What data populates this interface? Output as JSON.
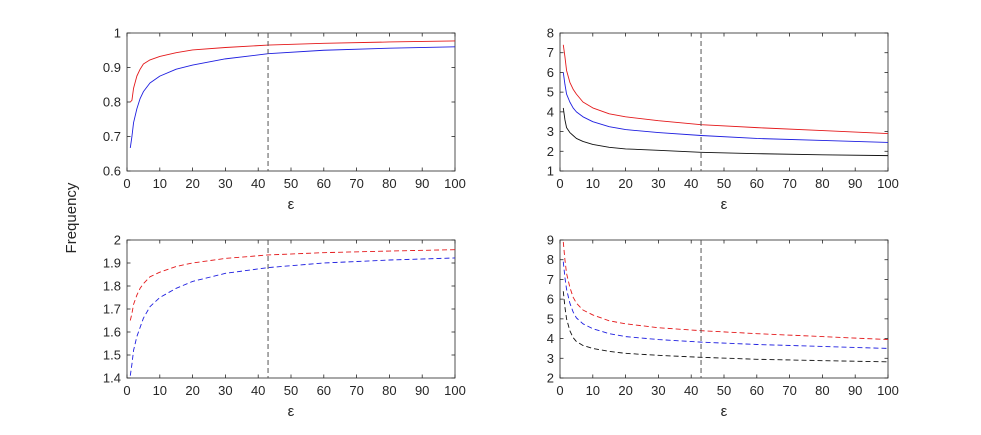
{
  "figure": {
    "ylabel": "Frequency",
    "vline_x": 43
  },
  "chart_data": [
    {
      "type": "line",
      "position": "top-left",
      "title": "",
      "xlabel": "ε",
      "ylabel": "",
      "xlim": [
        0,
        100
      ],
      "ylim": [
        0.6,
        1.0
      ],
      "xticks": [
        0,
        10,
        20,
        30,
        40,
        50,
        60,
        70,
        80,
        90,
        100
      ],
      "yticks": [
        0.6,
        0.7,
        0.8,
        0.9,
        1.0
      ],
      "ytick_labels": [
        "0.6",
        "0.7",
        "0.8",
        "0.9",
        "1"
      ],
      "series": [
        {
          "name": "red",
          "color": "#e41a1c",
          "dash": "solid",
          "x": [
            1,
            1.5,
            2,
            3,
            4,
            5,
            7,
            10,
            15,
            20,
            30,
            43,
            60,
            80,
            100
          ],
          "y": [
            0.8,
            0.805,
            0.84,
            0.875,
            0.895,
            0.91,
            0.922,
            0.932,
            0.943,
            0.951,
            0.958,
            0.965,
            0.97,
            0.974,
            0.977
          ]
        },
        {
          "name": "blue",
          "color": "#1f1fe0",
          "dash": "solid",
          "x": [
            1,
            1.5,
            2,
            3,
            4,
            5,
            7,
            10,
            15,
            20,
            30,
            43,
            60,
            80,
            100
          ],
          "y": [
            0.667,
            0.7,
            0.74,
            0.78,
            0.81,
            0.83,
            0.855,
            0.875,
            0.895,
            0.907,
            0.925,
            0.94,
            0.95,
            0.956,
            0.96
          ]
        }
      ]
    },
    {
      "type": "line",
      "position": "top-right",
      "title": "",
      "xlabel": "ε",
      "ylabel": "",
      "xlim": [
        0,
        100
      ],
      "ylim": [
        1,
        8
      ],
      "xticks": [
        0,
        10,
        20,
        30,
        40,
        50,
        60,
        70,
        80,
        90,
        100
      ],
      "yticks": [
        1,
        2,
        3,
        4,
        5,
        6,
        7,
        8
      ],
      "ytick_labels": [
        "1",
        "2",
        "3",
        "4",
        "5",
        "6",
        "7",
        "8"
      ],
      "series": [
        {
          "name": "red",
          "color": "#e41a1c",
          "dash": "solid",
          "x": [
            1,
            1.5,
            2,
            3,
            4,
            5,
            7,
            10,
            15,
            20,
            30,
            43,
            60,
            80,
            100
          ],
          "y": [
            7.4,
            6.8,
            6.1,
            5.5,
            5.15,
            4.9,
            4.5,
            4.2,
            3.9,
            3.75,
            3.55,
            3.35,
            3.2,
            3.05,
            2.9
          ]
        },
        {
          "name": "blue",
          "color": "#1f1fe0",
          "dash": "solid",
          "x": [
            1,
            1.5,
            2,
            3,
            4,
            5,
            7,
            10,
            15,
            20,
            30,
            43,
            60,
            80,
            100
          ],
          "y": [
            6.0,
            5.4,
            4.9,
            4.5,
            4.2,
            4.0,
            3.75,
            3.5,
            3.25,
            3.1,
            2.95,
            2.8,
            2.65,
            2.55,
            2.45
          ]
        },
        {
          "name": "black",
          "color": "#111111",
          "dash": "solid",
          "x": [
            1,
            1.5,
            2,
            3,
            4,
            5,
            7,
            10,
            15,
            20,
            30,
            43,
            60,
            80,
            100
          ],
          "y": [
            4.2,
            3.6,
            3.2,
            2.95,
            2.8,
            2.65,
            2.5,
            2.35,
            2.2,
            2.12,
            2.05,
            1.95,
            1.88,
            1.82,
            1.78
          ]
        }
      ]
    },
    {
      "type": "line",
      "position": "bottom-left",
      "title": "",
      "xlabel": "ε",
      "ylabel": "",
      "xlim": [
        0,
        100
      ],
      "ylim": [
        1.4,
        2.0
      ],
      "xticks": [
        0,
        10,
        20,
        30,
        40,
        50,
        60,
        70,
        80,
        90,
        100
      ],
      "yticks": [
        1.4,
        1.5,
        1.6,
        1.7,
        1.8,
        1.9,
        2.0
      ],
      "ytick_labels": [
        "1.4",
        "1.5",
        "1.6",
        "1.7",
        "1.8",
        "1.9",
        "2"
      ],
      "series": [
        {
          "name": "red",
          "color": "#e41a1c",
          "dash": "dashed",
          "x": [
            1,
            1.5,
            2,
            3,
            4,
            5,
            7,
            10,
            15,
            20,
            30,
            43,
            60,
            80,
            100
          ],
          "y": [
            1.65,
            1.68,
            1.72,
            1.76,
            1.79,
            1.81,
            1.84,
            1.86,
            1.885,
            1.9,
            1.92,
            1.935,
            1.945,
            1.952,
            1.958
          ]
        },
        {
          "name": "blue",
          "color": "#1f1fe0",
          "dash": "dashed",
          "x": [
            1,
            1.5,
            2,
            3,
            4,
            5,
            7,
            10,
            15,
            20,
            30,
            43,
            60,
            80,
            100
          ],
          "y": [
            1.41,
            1.46,
            1.52,
            1.58,
            1.62,
            1.66,
            1.71,
            1.75,
            1.79,
            1.82,
            1.855,
            1.88,
            1.9,
            1.913,
            1.922
          ]
        }
      ]
    },
    {
      "type": "line",
      "position": "bottom-right",
      "title": "",
      "xlabel": "ε",
      "ylabel": "",
      "xlim": [
        0,
        100
      ],
      "ylim": [
        2,
        9
      ],
      "xticks": [
        0,
        10,
        20,
        30,
        40,
        50,
        60,
        70,
        80,
        90,
        100
      ],
      "yticks": [
        2,
        3,
        4,
        5,
        6,
        7,
        8,
        9
      ],
      "ytick_labels": [
        "2",
        "3",
        "4",
        "5",
        "6",
        "7",
        "8",
        "9"
      ],
      "series": [
        {
          "name": "red",
          "color": "#e41a1c",
          "dash": "dashed",
          "x": [
            1,
            1.5,
            2,
            3,
            4,
            5,
            7,
            10,
            15,
            20,
            30,
            43,
            60,
            80,
            100
          ],
          "y": [
            8.9,
            8.0,
            7.3,
            6.6,
            6.1,
            5.8,
            5.45,
            5.2,
            4.9,
            4.75,
            4.55,
            4.4,
            4.25,
            4.1,
            3.95
          ]
        },
        {
          "name": "blue",
          "color": "#1f1fe0",
          "dash": "dashed",
          "x": [
            1,
            1.5,
            2,
            3,
            4,
            5,
            7,
            10,
            15,
            20,
            30,
            43,
            60,
            80,
            100
          ],
          "y": [
            7.9,
            7.1,
            6.5,
            5.8,
            5.35,
            5.05,
            4.75,
            4.5,
            4.25,
            4.1,
            3.95,
            3.82,
            3.7,
            3.6,
            3.5
          ]
        },
        {
          "name": "black",
          "color": "#111111",
          "dash": "dashed",
          "x": [
            1,
            1.5,
            2,
            3,
            4,
            5,
            7,
            10,
            15,
            20,
            30,
            43,
            60,
            80,
            100
          ],
          "y": [
            6.4,
            5.6,
            5.0,
            4.4,
            4.05,
            3.85,
            3.65,
            3.5,
            3.35,
            3.25,
            3.15,
            3.05,
            2.95,
            2.88,
            2.82
          ]
        }
      ]
    }
  ]
}
